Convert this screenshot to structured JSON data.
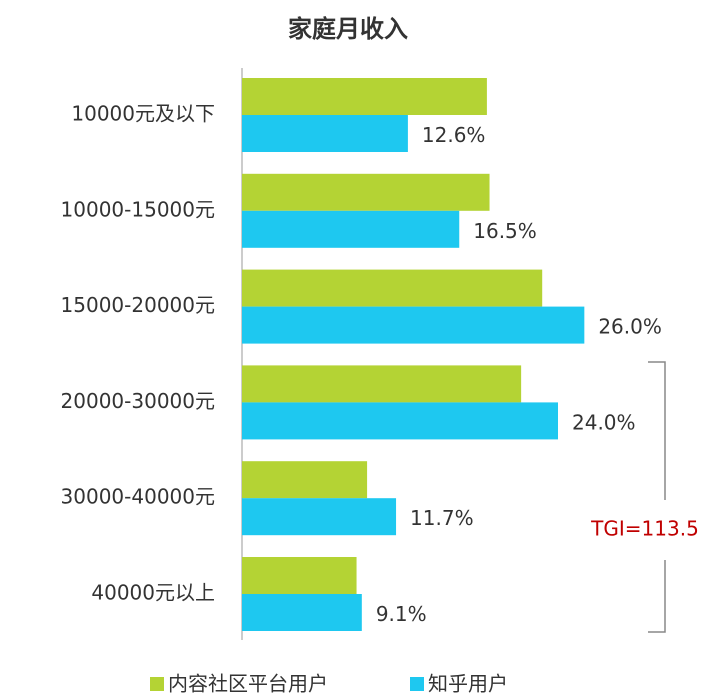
{
  "chart_data": {
    "type": "bar",
    "orientation": "horizontal",
    "title": "家庭月收入",
    "categories": [
      "10000元及以下",
      "10000-15000元",
      "15000-20000元",
      "20000-30000元",
      "30000-40000元",
      "40000元以上"
    ],
    "series": [
      {
        "name": "内容社区平台用户",
        "color": "#b4d334",
        "values": [
          18.6,
          18.8,
          22.8,
          21.2,
          9.5,
          8.7
        ]
      },
      {
        "name": "知乎用户",
        "color": "#1ec8f0",
        "values": [
          12.6,
          16.5,
          26.0,
          24.0,
          11.7,
          9.1
        ],
        "value_labels": [
          "12.6%",
          "16.5%",
          "26.0%",
          "24.0%",
          "11.7%",
          "9.1%"
        ]
      }
    ],
    "xlim": [
      0,
      30
    ],
    "annotation": "TGI=113.5",
    "legend": "bottom"
  }
}
